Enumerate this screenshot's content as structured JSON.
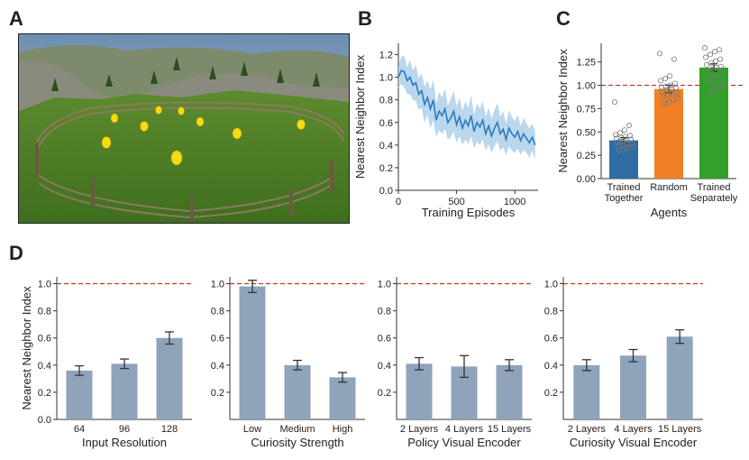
{
  "panels": {
    "a": "A",
    "b": "B",
    "c": "C",
    "d": "D"
  },
  "photo": {
    "subject": "yellow-chick-agents-in-fenced-grass-arena"
  },
  "chart_data": [
    {
      "id": "B",
      "type": "line",
      "xlabel": "Training Episodes",
      "ylabel": "Nearest Neighbor Index",
      "xlim": [
        0,
        1200
      ],
      "ylim": [
        0,
        1.3
      ],
      "xticks": [
        "0",
        "500",
        "1000"
      ],
      "xtick_values": [
        0,
        500,
        1000
      ],
      "yticks": [
        "0.0",
        "0.2",
        "0.4",
        "0.6",
        "0.8",
        "1.0",
        "1.2"
      ],
      "ytick_values": [
        0,
        0.2,
        0.4,
        0.6,
        0.8,
        1.0,
        1.2
      ],
      "color": "#2b7bbf",
      "band_color": "#a9cde8",
      "x": [
        0,
        25,
        50,
        75,
        100,
        125,
        150,
        175,
        200,
        225,
        250,
        275,
        300,
        325,
        350,
        375,
        400,
        425,
        450,
        475,
        500,
        525,
        550,
        575,
        600,
        625,
        650,
        675,
        700,
        725,
        750,
        775,
        800,
        825,
        850,
        875,
        900,
        925,
        950,
        975,
        1000,
        1025,
        1050,
        1075,
        1100,
        1125,
        1150,
        1175
      ],
      "y": [
        1.0,
        1.06,
        1.05,
        0.97,
        1.0,
        0.93,
        0.95,
        0.85,
        0.88,
        0.76,
        0.82,
        0.72,
        0.8,
        0.62,
        0.7,
        0.66,
        0.72,
        0.6,
        0.64,
        0.7,
        0.58,
        0.65,
        0.55,
        0.62,
        0.57,
        0.66,
        0.52,
        0.6,
        0.56,
        0.62,
        0.5,
        0.57,
        0.48,
        0.55,
        0.6,
        0.5,
        0.54,
        0.45,
        0.55,
        0.5,
        0.47,
        0.52,
        0.44,
        0.5,
        0.46,
        0.42,
        0.47,
        0.4
      ],
      "band": [
        0.1,
        0.12,
        0.14,
        0.12,
        0.15,
        0.13,
        0.16,
        0.14,
        0.15,
        0.16,
        0.15,
        0.17,
        0.18,
        0.15,
        0.17,
        0.16,
        0.18,
        0.15,
        0.17,
        0.18,
        0.16,
        0.17,
        0.15,
        0.17,
        0.16,
        0.18,
        0.15,
        0.17,
        0.16,
        0.17,
        0.15,
        0.16,
        0.15,
        0.16,
        0.17,
        0.15,
        0.16,
        0.14,
        0.16,
        0.15,
        0.14,
        0.15,
        0.13,
        0.14,
        0.13,
        0.13,
        0.12,
        0.12
      ]
    },
    {
      "id": "C",
      "type": "bar",
      "xlabel": "Agents",
      "ylabel": "Nearest Neighbor Index",
      "ylim": [
        0,
        1.45
      ],
      "reference": 1.0,
      "yticks": [
        "0.00",
        "0.25",
        "0.50",
        "0.75",
        "1.00",
        "1.25"
      ],
      "ytick_values": [
        0,
        0.25,
        0.5,
        0.75,
        1.0,
        1.25
      ],
      "categories": [
        [
          "Trained",
          "Together"
        ],
        [
          "Random"
        ],
        [
          "Trained",
          "Separately"
        ]
      ],
      "values": [
        0.41,
        0.96,
        1.19
      ],
      "errors": [
        0.03,
        0.04,
        0.04
      ],
      "colors": [
        "#2e6da4",
        "#f07f25",
        "#33a02c"
      ],
      "points": [
        [
          0.82,
          0.57,
          0.52,
          0.49,
          0.47,
          0.46,
          0.45,
          0.44,
          0.43,
          0.42,
          0.41,
          0.4,
          0.39,
          0.38,
          0.37,
          0.36,
          0.35,
          0.34,
          0.33,
          0.31,
          0.3
        ],
        [
          1.34,
          1.28,
          1.1,
          1.07,
          1.05,
          1.02,
          1.0,
          0.99,
          0.98,
          0.97,
          0.96,
          0.95,
          0.93,
          0.92,
          0.91,
          0.9,
          0.88,
          0.86,
          0.84,
          0.82,
          0.8
        ],
        [
          1.4,
          1.38,
          1.36,
          1.33,
          1.3,
          1.28,
          1.26,
          1.24,
          1.22,
          1.2,
          1.19,
          1.17,
          1.15,
          1.13,
          1.1,
          1.07,
          1.04,
          1.01,
          0.97,
          0.94,
          0.92
        ]
      ]
    },
    {
      "id": "D1",
      "type": "bar",
      "xlabel": "Input Resolution",
      "ylabel": "Nearest Neighbor Index",
      "ylim": [
        0,
        1.05
      ],
      "reference": 1.0,
      "yticks": [
        "0.0",
        "0.2",
        "0.4",
        "0.6",
        "0.8",
        "1.0"
      ],
      "ytick_values": [
        0,
        0.2,
        0.4,
        0.6,
        0.8,
        1.0
      ],
      "categories": [
        "64",
        "96",
        "128"
      ],
      "values": [
        0.36,
        0.41,
        0.6
      ],
      "errors": [
        0.035,
        0.035,
        0.045
      ],
      "color": "#8fa3bb"
    },
    {
      "id": "D2",
      "type": "bar",
      "xlabel": "Curiosity Strength",
      "ylabel": "",
      "ylim": [
        0,
        1.05
      ],
      "reference": 1.0,
      "yticks": [
        "0.2",
        "0.4",
        "0.6",
        "0.8",
        "1.0"
      ],
      "ytick_values": [
        0.2,
        0.4,
        0.6,
        0.8,
        1.0
      ],
      "categories": [
        "Low",
        "Medium",
        "High"
      ],
      "values": [
        0.98,
        0.4,
        0.31
      ],
      "errors": [
        0.045,
        0.035,
        0.035
      ],
      "color": "#8fa3bb"
    },
    {
      "id": "D3",
      "type": "bar",
      "xlabel": "Policy Visual Encoder",
      "ylabel": "",
      "ylim": [
        0,
        1.05
      ],
      "reference": 1.0,
      "yticks": [
        "0.2",
        "0.4",
        "0.6",
        "0.8",
        "1.0"
      ],
      "ytick_values": [
        0.2,
        0.4,
        0.6,
        0.8,
        1.0
      ],
      "categories": [
        "2 Layers",
        "4 Layers",
        "15 Layers"
      ],
      "values": [
        0.41,
        0.39,
        0.4
      ],
      "errors": [
        0.045,
        0.08,
        0.04
      ],
      "color": "#8fa3bb"
    },
    {
      "id": "D4",
      "type": "bar",
      "xlabel": "Curiosity Visual Encoder",
      "ylabel": "",
      "ylim": [
        0,
        1.05
      ],
      "reference": 1.0,
      "yticks": [
        "0.2",
        "0.4",
        "0.6",
        "0.8",
        "1.0"
      ],
      "ytick_values": [
        0.2,
        0.4,
        0.6,
        0.8,
        1.0
      ],
      "categories": [
        "2 Layers",
        "4 Layers",
        "15 Layers"
      ],
      "values": [
        0.4,
        0.47,
        0.61
      ],
      "errors": [
        0.04,
        0.045,
        0.05
      ],
      "color": "#8fa3bb"
    }
  ]
}
